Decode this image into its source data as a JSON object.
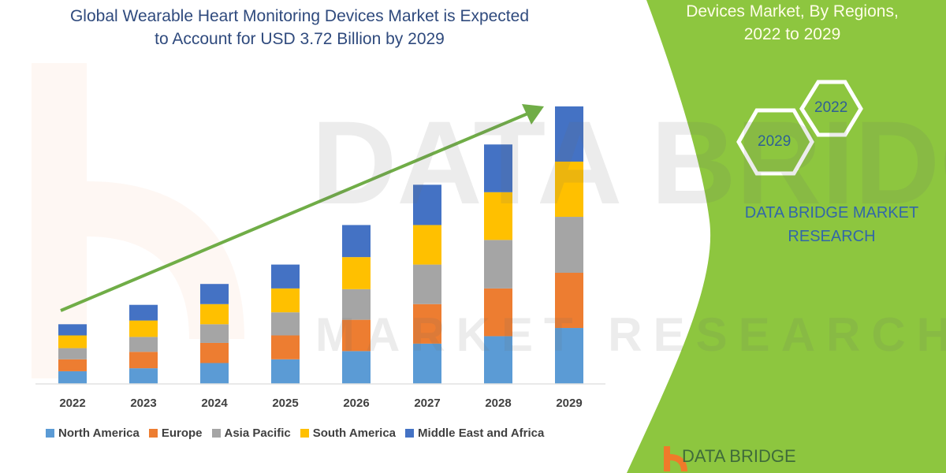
{
  "header": {
    "title_line1": "Global Wearable Heart Monitoring Devices Market is Expected",
    "title_line2": "to Account for USD 3.72 Billion by 2029"
  },
  "side_panel": {
    "title_line1": "Devices Market, By Regions,",
    "title_line2": "2022 to 2029",
    "hex_labels": [
      "2022",
      "2029"
    ],
    "brand_line1": "DATA BRIDGE MARKET",
    "brand_line2": "RESEARCH",
    "logo_text": "DATA BRIDGE",
    "panel_color": "#8DC63F"
  },
  "watermark": {
    "text": "DATA BRIDGE",
    "subtext": "MARKET RESEARCH"
  },
  "chart_data": {
    "type": "bar",
    "stacked": true,
    "title": "Global Wearable Heart Monitoring Devices Market is Expected to Account for USD 3.72 Billion by 2029",
    "xlabel": "",
    "ylabel": "",
    "y_axis_visible": false,
    "grid": false,
    "legend_position": "bottom",
    "trend_arrow": true,
    "categories": [
      "2022",
      "2023",
      "2024",
      "2025",
      "2026",
      "2027",
      "2028",
      "2029"
    ],
    "series": [
      {
        "name": "North America",
        "color": "#5B9BD5",
        "values": [
          0.17,
          0.21,
          0.28,
          0.33,
          0.44,
          0.54,
          0.64,
          0.75
        ]
      },
      {
        "name": "Europe",
        "color": "#ED7D31",
        "values": [
          0.16,
          0.22,
          0.27,
          0.32,
          0.42,
          0.53,
          0.64,
          0.74
        ]
      },
      {
        "name": "Asia Pacific",
        "color": "#A5A5A5",
        "values": [
          0.15,
          0.2,
          0.25,
          0.31,
          0.41,
          0.53,
          0.65,
          0.75
        ]
      },
      {
        "name": "South America",
        "color": "#FFC000",
        "values": [
          0.17,
          0.22,
          0.27,
          0.32,
          0.43,
          0.53,
          0.64,
          0.74
        ]
      },
      {
        "name": "Middle East and Africa",
        "color": "#4472C4",
        "values": [
          0.15,
          0.21,
          0.27,
          0.32,
          0.43,
          0.54,
          0.64,
          0.74
        ]
      }
    ],
    "ylim": [
      0,
      3.72
    ]
  }
}
